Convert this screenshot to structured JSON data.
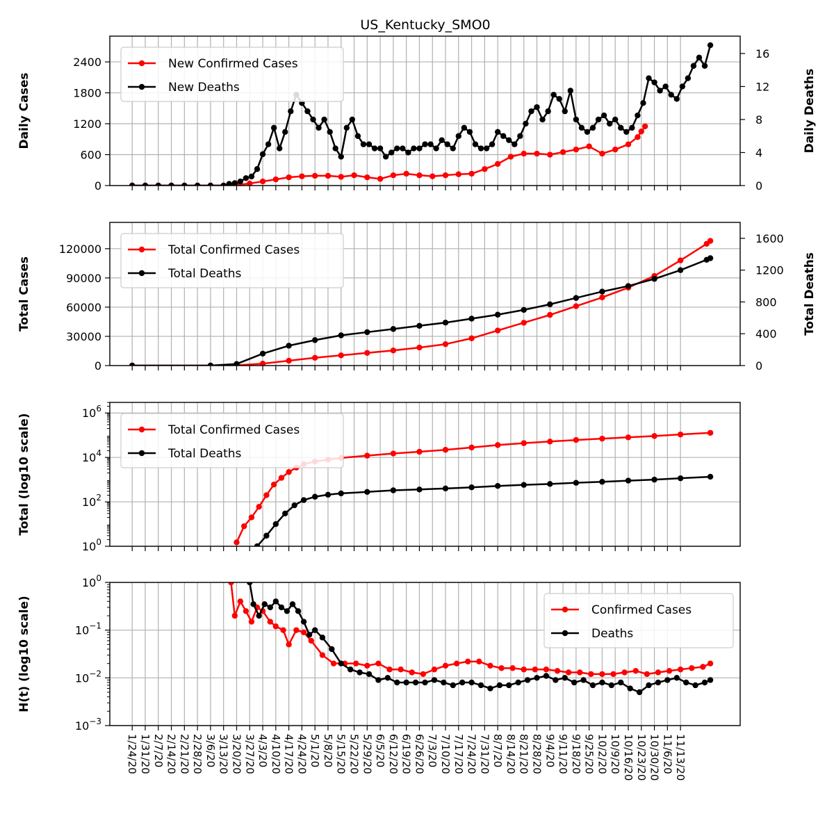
{
  "title": "US_Kentucky_SMO0",
  "colors": {
    "cases": "#ff0000",
    "deaths": "#000000",
    "grid": "#b0b0b0"
  },
  "x_tick_labels": [
    "1/24/20",
    "1/31/20",
    "2/7/20",
    "2/14/20",
    "2/21/20",
    "2/28/20",
    "3/6/20",
    "3/13/20",
    "3/20/20",
    "3/27/20",
    "4/3/20",
    "4/10/20",
    "4/17/20",
    "4/24/20",
    "5/1/20",
    "5/8/20",
    "5/15/20",
    "5/22/20",
    "5/29/20",
    "6/5/20",
    "6/12/20",
    "6/19/20",
    "6/26/20",
    "7/3/20",
    "7/10/20",
    "7/17/20",
    "7/24/20",
    "7/31/20",
    "8/7/20",
    "8/14/20",
    "8/21/20",
    "8/28/20",
    "9/4/20",
    "9/11/20",
    "9/18/20",
    "9/25/20",
    "10/2/20",
    "10/9/20",
    "10/16/20",
    "10/23/20",
    "10/30/20",
    "11/6/20",
    "11/13/20"
  ],
  "chart_data": [
    {
      "type": "line",
      "ylabel": "Daily Cases",
      "ylabel_right": "Daily Deaths",
      "ylim": [
        0,
        2900
      ],
      "ylim_right": [
        0,
        18.1
      ],
      "yticks": [
        "0",
        "600",
        "1200",
        "1800",
        "2400"
      ],
      "yticks_right": [
        "0",
        "4",
        "8",
        "12",
        "16"
      ],
      "legend_position": "upper-left",
      "series": [
        {
          "name": "New Confirmed Cases",
          "axis": "left",
          "x": [
            48,
            55,
            62,
            69,
            76,
            83,
            90,
            97,
            104,
            111,
            118,
            125,
            132,
            139,
            146,
            153,
            160,
            167,
            174,
            181,
            188,
            195,
            202,
            209,
            216,
            223,
            230,
            237,
            244,
            251,
            258,
            265,
            272,
            279,
            286,
            293,
            300,
            307,
            314,
            319,
            321,
            323
          ],
          "values": [
            0,
            0,
            0,
            0,
            0,
            0,
            0,
            0,
            10,
            40,
            80,
            120,
            160,
            180,
            190,
            190,
            170,
            200,
            160,
            130,
            200,
            230,
            200,
            180,
            200,
            220,
            230,
            320,
            420,
            560,
            620,
            620,
            600,
            650,
            700,
            760,
            620,
            700,
            800,
            940,
            1050,
            1150
          ]
        },
        {
          "name": "New Deaths",
          "axis": "right",
          "x": [
            48,
            55,
            62,
            69,
            76,
            83,
            90,
            97,
            100,
            103,
            106,
            109,
            112,
            115,
            118,
            121,
            124,
            127,
            130,
            133,
            136,
            139,
            142,
            145,
            148,
            151,
            154,
            157,
            160,
            163,
            166,
            169,
            172,
            175,
            178,
            181,
            184,
            187,
            190,
            193,
            196,
            199,
            202,
            205,
            208,
            211,
            214,
            217,
            220,
            223,
            226,
            229,
            232,
            235,
            238,
            241,
            244,
            247,
            250,
            253,
            256,
            259,
            262,
            265,
            268,
            271,
            274,
            277,
            280,
            283,
            286,
            289,
            292,
            295,
            298,
            301,
            304,
            307,
            310,
            313,
            316,
            319,
            322,
            325,
            328,
            331,
            334,
            337,
            340,
            343,
            346,
            349,
            352,
            355,
            358
          ],
          "values": [
            0,
            0,
            0,
            0,
            0,
            0,
            0,
            0,
            0.2,
            0.3,
            0.5,
            0.9,
            1.1,
            2.0,
            3.8,
            5.0,
            7.0,
            4.5,
            6.5,
            9.0,
            11.0,
            10.0,
            9.0,
            8.0,
            7.0,
            8.0,
            6.5,
            4.5,
            3.5,
            7.0,
            8.0,
            6.0,
            5.0,
            5.0,
            4.5,
            4.5,
            3.5,
            4.0,
            4.5,
            4.5,
            4.0,
            4.5,
            4.5,
            5.0,
            5.0,
            4.5,
            5.5,
            5.0,
            4.5,
            6.0,
            7.0,
            6.5,
            5.0,
            4.5,
            4.5,
            5.0,
            6.5,
            6.0,
            5.5,
            5.0,
            6.0,
            7.5,
            9.0,
            9.5,
            8.0,
            9.0,
            11.0,
            10.5,
            9.0,
            11.5,
            8.0,
            7.0,
            6.5,
            7.0,
            8.0,
            8.5,
            7.5,
            8.0,
            7.0,
            6.5,
            7.0,
            8.5,
            10.0,
            13.0,
            12.5,
            11.5,
            12.0,
            11.0,
            10.5,
            12.0,
            13.0,
            14.5,
            15.5,
            14.5,
            17.0
          ]
        }
      ]
    },
    {
      "type": "line",
      "ylabel": "Total Cases",
      "ylabel_right": "Total Deaths",
      "ylim": [
        0,
        147000
      ],
      "ylim_right": [
        0,
        1800
      ],
      "yticks": [
        "0",
        "30000",
        "60000",
        "90000",
        "120000"
      ],
      "yticks_right": [
        "0",
        "400",
        "800",
        "1200",
        "1600"
      ],
      "legend_position": "upper-left",
      "series": [
        {
          "name": "Total Confirmed Cases",
          "axis": "left",
          "x": [
            48,
            90,
            104,
            118,
            132,
            146,
            160,
            174,
            188,
            202,
            216,
            230,
            244,
            258,
            272,
            286,
            300,
            314,
            328,
            342,
            356,
            358
          ],
          "values": [
            0,
            0,
            300,
            2000,
            5000,
            8000,
            10500,
            13000,
            15500,
            18500,
            22000,
            28000,
            36000,
            44000,
            52000,
            61000,
            70000,
            80000,
            92000,
            108000,
            125000,
            128000
          ]
        },
        {
          "name": "Total Deaths",
          "axis": "right",
          "x": [
            48,
            90,
            104,
            118,
            132,
            146,
            160,
            174,
            188,
            202,
            216,
            230,
            244,
            258,
            272,
            286,
            300,
            314,
            328,
            342,
            356,
            358
          ],
          "values": [
            0,
            0,
            20,
            150,
            250,
            320,
            380,
            420,
            460,
            500,
            540,
            590,
            640,
            700,
            770,
            850,
            930,
            1000,
            1090,
            1200,
            1330,
            1350
          ]
        }
      ]
    },
    {
      "type": "line",
      "yscale": "log",
      "ylabel": "Total (log10 scale)",
      "ylim": [
        1,
        3000000
      ],
      "yticks": [
        "10^0",
        "10^2",
        "10^4",
        "10^6"
      ],
      "legend_position": "upper-left",
      "series": [
        {
          "name": "Total Confirmed Cases",
          "x": [
            104,
            108,
            112,
            116,
            120,
            124,
            128,
            132,
            136,
            140,
            146,
            153,
            160,
            174,
            188,
            202,
            216,
            230,
            244,
            258,
            272,
            286,
            300,
            314,
            328,
            342,
            358
          ],
          "values": [
            1.5,
            8,
            20,
            60,
            200,
            600,
            1200,
            2200,
            3500,
            5000,
            6500,
            8000,
            9500,
            12000,
            15000,
            18000,
            22000,
            28000,
            36000,
            44000,
            52000,
            61000,
            70000,
            80000,
            92000,
            108000,
            128000
          ]
        },
        {
          "name": "Total Deaths",
          "x": [
            115,
            120,
            125,
            130,
            135,
            140,
            146,
            153,
            160,
            174,
            188,
            202,
            216,
            230,
            244,
            258,
            272,
            286,
            300,
            314,
            328,
            342,
            358
          ],
          "values": [
            1,
            3,
            10,
            30,
            70,
            120,
            170,
            210,
            240,
            280,
            330,
            360,
            400,
            450,
            520,
            580,
            640,
            720,
            800,
            900,
            1000,
            1150,
            1350
          ]
        }
      ]
    },
    {
      "type": "line",
      "yscale": "log",
      "ylabel": "H(t) (log10 scale)",
      "ylim": [
        0.001,
        1
      ],
      "yticks": [
        "10^-3",
        "10^-2",
        "10^-1",
        "10^0"
      ],
      "legend_position": "upper-right",
      "series": [
        {
          "name": "Confirmed Cases",
          "x": [
            101,
            103,
            106,
            109,
            112,
            115,
            118,
            122,
            125,
            129,
            132,
            136,
            140,
            144,
            150,
            156,
            162,
            168,
            174,
            180,
            186,
            192,
            198,
            204,
            210,
            216,
            222,
            228,
            234,
            240,
            246,
            252,
            258,
            264,
            270,
            276,
            282,
            288,
            294,
            300,
            306,
            312,
            318,
            324,
            330,
            336,
            342,
            348,
            354,
            358
          ],
          "values": [
            1,
            0.2,
            0.4,
            0.25,
            0.15,
            0.3,
            0.25,
            0.15,
            0.12,
            0.1,
            0.05,
            0.1,
            0.09,
            0.06,
            0.03,
            0.02,
            0.02,
            0.02,
            0.018,
            0.02,
            0.015,
            0.015,
            0.013,
            0.012,
            0.015,
            0.018,
            0.02,
            0.022,
            0.022,
            0.018,
            0.016,
            0.016,
            0.015,
            0.015,
            0.015,
            0.014,
            0.013,
            0.013,
            0.012,
            0.012,
            0.012,
            0.013,
            0.014,
            0.012,
            0.013,
            0.014,
            0.015,
            0.016,
            0.017,
            0.02
          ]
        },
        {
          "name": "Deaths",
          "x": [
            111,
            113,
            116,
            119,
            122,
            125,
            128,
            131,
            134,
            137,
            140,
            143,
            146,
            150,
            155,
            160,
            165,
            170,
            175,
            180,
            185,
            190,
            195,
            200,
            205,
            210,
            215,
            220,
            225,
            230,
            235,
            240,
            245,
            250,
            255,
            260,
            265,
            270,
            275,
            280,
            285,
            290,
            295,
            300,
            305,
            310,
            315,
            320,
            325,
            330,
            335,
            340,
            345,
            350,
            355,
            358
          ],
          "values": [
            1,
            0.35,
            0.2,
            0.35,
            0.3,
            0.4,
            0.3,
            0.25,
            0.35,
            0.25,
            0.15,
            0.08,
            0.1,
            0.07,
            0.04,
            0.02,
            0.015,
            0.013,
            0.012,
            0.009,
            0.01,
            0.008,
            0.008,
            0.008,
            0.008,
            0.009,
            0.008,
            0.007,
            0.008,
            0.008,
            0.007,
            0.006,
            0.007,
            0.007,
            0.008,
            0.009,
            0.01,
            0.011,
            0.009,
            0.01,
            0.008,
            0.009,
            0.007,
            0.008,
            0.007,
            0.008,
            0.006,
            0.005,
            0.007,
            0.008,
            0.009,
            0.01,
            0.008,
            0.007,
            0.008,
            0.009
          ]
        }
      ]
    }
  ]
}
